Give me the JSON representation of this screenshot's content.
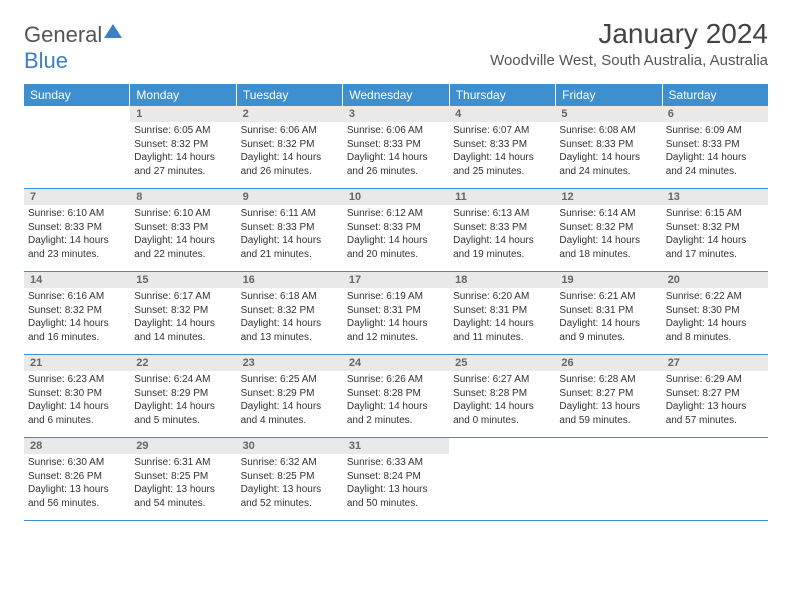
{
  "logo": {
    "word1": "General",
    "word2": "Blue"
  },
  "title": "January 2024",
  "location": "Woodville West, South Australia, Australia",
  "colors": {
    "header_bg": "#3d8fcf",
    "daynum_bg": "#e9e9e9",
    "week_border": "#3d8fcf",
    "logo_accent": "#3d7fc4",
    "text": "#333333"
  },
  "day_headers": [
    "Sunday",
    "Monday",
    "Tuesday",
    "Wednesday",
    "Thursday",
    "Friday",
    "Saturday"
  ],
  "weeks": [
    [
      null,
      {
        "n": "1",
        "sr": "Sunrise: 6:05 AM",
        "ss": "Sunset: 8:32 PM",
        "dl": "Daylight: 14 hours and 27 minutes."
      },
      {
        "n": "2",
        "sr": "Sunrise: 6:06 AM",
        "ss": "Sunset: 8:32 PM",
        "dl": "Daylight: 14 hours and 26 minutes."
      },
      {
        "n": "3",
        "sr": "Sunrise: 6:06 AM",
        "ss": "Sunset: 8:33 PM",
        "dl": "Daylight: 14 hours and 26 minutes."
      },
      {
        "n": "4",
        "sr": "Sunrise: 6:07 AM",
        "ss": "Sunset: 8:33 PM",
        "dl": "Daylight: 14 hours and 25 minutes."
      },
      {
        "n": "5",
        "sr": "Sunrise: 6:08 AM",
        "ss": "Sunset: 8:33 PM",
        "dl": "Daylight: 14 hours and 24 minutes."
      },
      {
        "n": "6",
        "sr": "Sunrise: 6:09 AM",
        "ss": "Sunset: 8:33 PM",
        "dl": "Daylight: 14 hours and 24 minutes."
      }
    ],
    [
      {
        "n": "7",
        "sr": "Sunrise: 6:10 AM",
        "ss": "Sunset: 8:33 PM",
        "dl": "Daylight: 14 hours and 23 minutes."
      },
      {
        "n": "8",
        "sr": "Sunrise: 6:10 AM",
        "ss": "Sunset: 8:33 PM",
        "dl": "Daylight: 14 hours and 22 minutes."
      },
      {
        "n": "9",
        "sr": "Sunrise: 6:11 AM",
        "ss": "Sunset: 8:33 PM",
        "dl": "Daylight: 14 hours and 21 minutes."
      },
      {
        "n": "10",
        "sr": "Sunrise: 6:12 AM",
        "ss": "Sunset: 8:33 PM",
        "dl": "Daylight: 14 hours and 20 minutes."
      },
      {
        "n": "11",
        "sr": "Sunrise: 6:13 AM",
        "ss": "Sunset: 8:33 PM",
        "dl": "Daylight: 14 hours and 19 minutes."
      },
      {
        "n": "12",
        "sr": "Sunrise: 6:14 AM",
        "ss": "Sunset: 8:32 PM",
        "dl": "Daylight: 14 hours and 18 minutes."
      },
      {
        "n": "13",
        "sr": "Sunrise: 6:15 AM",
        "ss": "Sunset: 8:32 PM",
        "dl": "Daylight: 14 hours and 17 minutes."
      }
    ],
    [
      {
        "n": "14",
        "sr": "Sunrise: 6:16 AM",
        "ss": "Sunset: 8:32 PM",
        "dl": "Daylight: 14 hours and 16 minutes."
      },
      {
        "n": "15",
        "sr": "Sunrise: 6:17 AM",
        "ss": "Sunset: 8:32 PM",
        "dl": "Daylight: 14 hours and 14 minutes."
      },
      {
        "n": "16",
        "sr": "Sunrise: 6:18 AM",
        "ss": "Sunset: 8:32 PM",
        "dl": "Daylight: 14 hours and 13 minutes."
      },
      {
        "n": "17",
        "sr": "Sunrise: 6:19 AM",
        "ss": "Sunset: 8:31 PM",
        "dl": "Daylight: 14 hours and 12 minutes."
      },
      {
        "n": "18",
        "sr": "Sunrise: 6:20 AM",
        "ss": "Sunset: 8:31 PM",
        "dl": "Daylight: 14 hours and 11 minutes."
      },
      {
        "n": "19",
        "sr": "Sunrise: 6:21 AM",
        "ss": "Sunset: 8:31 PM",
        "dl": "Daylight: 14 hours and 9 minutes."
      },
      {
        "n": "20",
        "sr": "Sunrise: 6:22 AM",
        "ss": "Sunset: 8:30 PM",
        "dl": "Daylight: 14 hours and 8 minutes."
      }
    ],
    [
      {
        "n": "21",
        "sr": "Sunrise: 6:23 AM",
        "ss": "Sunset: 8:30 PM",
        "dl": "Daylight: 14 hours and 6 minutes."
      },
      {
        "n": "22",
        "sr": "Sunrise: 6:24 AM",
        "ss": "Sunset: 8:29 PM",
        "dl": "Daylight: 14 hours and 5 minutes."
      },
      {
        "n": "23",
        "sr": "Sunrise: 6:25 AM",
        "ss": "Sunset: 8:29 PM",
        "dl": "Daylight: 14 hours and 4 minutes."
      },
      {
        "n": "24",
        "sr": "Sunrise: 6:26 AM",
        "ss": "Sunset: 8:28 PM",
        "dl": "Daylight: 14 hours and 2 minutes."
      },
      {
        "n": "25",
        "sr": "Sunrise: 6:27 AM",
        "ss": "Sunset: 8:28 PM",
        "dl": "Daylight: 14 hours and 0 minutes."
      },
      {
        "n": "26",
        "sr": "Sunrise: 6:28 AM",
        "ss": "Sunset: 8:27 PM",
        "dl": "Daylight: 13 hours and 59 minutes."
      },
      {
        "n": "27",
        "sr": "Sunrise: 6:29 AM",
        "ss": "Sunset: 8:27 PM",
        "dl": "Daylight: 13 hours and 57 minutes."
      }
    ],
    [
      {
        "n": "28",
        "sr": "Sunrise: 6:30 AM",
        "ss": "Sunset: 8:26 PM",
        "dl": "Daylight: 13 hours and 56 minutes."
      },
      {
        "n": "29",
        "sr": "Sunrise: 6:31 AM",
        "ss": "Sunset: 8:25 PM",
        "dl": "Daylight: 13 hours and 54 minutes."
      },
      {
        "n": "30",
        "sr": "Sunrise: 6:32 AM",
        "ss": "Sunset: 8:25 PM",
        "dl": "Daylight: 13 hours and 52 minutes."
      },
      {
        "n": "31",
        "sr": "Sunrise: 6:33 AM",
        "ss": "Sunset: 8:24 PM",
        "dl": "Daylight: 13 hours and 50 minutes."
      },
      null,
      null,
      null
    ]
  ]
}
